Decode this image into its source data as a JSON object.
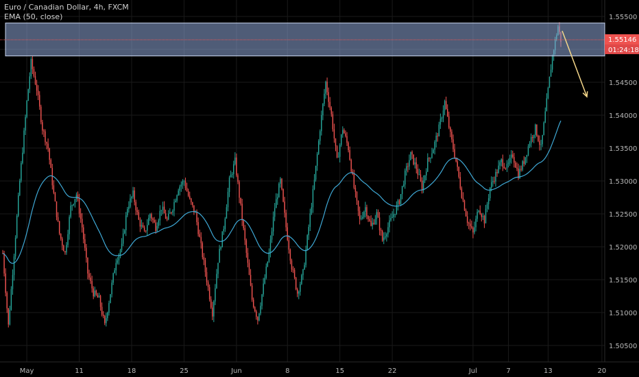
{
  "header": {
    "title": "Euro / Canadian Dollar, 4h, FXCM",
    "indicator": "EMA (50, close)"
  },
  "colors": {
    "background": "#000000",
    "up": "#26a69a",
    "down": "#ef5350",
    "ema": "#3fa9d6",
    "zone_fill": "#8fa8d8",
    "price_line": "#ef5350",
    "arrow": "#f5d78a",
    "grid": "#1a1a1a",
    "axis_text": "#b8b8b8"
  },
  "chart_data": {
    "type": "candlestick",
    "symbol": "Euro / Canadian Dollar",
    "interval": "4h",
    "source": "FXCM",
    "ylim": [
      1.5025,
      1.5575
    ],
    "y_ticks": [
      "1.55500",
      "1.55000",
      "1.54500",
      "1.54000",
      "1.53500",
      "1.53000",
      "1.52500",
      "1.52000",
      "1.51500",
      "1.51000",
      "1.50500"
    ],
    "x_ticks": [
      "May",
      "11",
      "18",
      "25",
      "Jun",
      "8",
      "15",
      "22",
      "Jul",
      "7",
      "13",
      "20"
    ],
    "price_keyframes": [
      [
        0,
        1.519
      ],
      [
        4,
        1.508
      ],
      [
        8,
        1.519
      ],
      [
        12,
        1.53
      ],
      [
        17,
        1.542
      ],
      [
        20,
        1.548
      ],
      [
        24,
        1.544
      ],
      [
        28,
        1.538
      ],
      [
        32,
        1.535
      ],
      [
        36,
        1.528
      ],
      [
        40,
        1.522
      ],
      [
        44,
        1.519
      ],
      [
        48,
        1.526
      ],
      [
        52,
        1.528
      ],
      [
        56,
        1.523
      ],
      [
        60,
        1.516
      ],
      [
        64,
        1.513
      ],
      [
        68,
        1.512
      ],
      [
        72,
        1.508
      ],
      [
        76,
        1.513
      ],
      [
        80,
        1.518
      ],
      [
        84,
        1.52
      ],
      [
        88,
        1.526
      ],
      [
        92,
        1.528
      ],
      [
        96,
        1.524
      ],
      [
        100,
        1.522
      ],
      [
        104,
        1.525
      ],
      [
        108,
        1.523
      ],
      [
        112,
        1.526
      ],
      [
        116,
        1.524
      ],
      [
        120,
        1.526
      ],
      [
        124,
        1.529
      ],
      [
        128,
        1.53
      ],
      [
        132,
        1.527
      ],
      [
        136,
        1.525
      ],
      [
        140,
        1.52
      ],
      [
        144,
        1.515
      ],
      [
        148,
        1.51
      ],
      [
        152,
        1.518
      ],
      [
        156,
        1.523
      ],
      [
        160,
        1.53
      ],
      [
        164,
        1.533
      ],
      [
        168,
        1.526
      ],
      [
        172,
        1.519
      ],
      [
        176,
        1.512
      ],
      [
        180,
        1.509
      ],
      [
        184,
        1.514
      ],
      [
        188,
        1.519
      ],
      [
        192,
        1.526
      ],
      [
        196,
        1.53
      ],
      [
        200,
        1.523
      ],
      [
        204,
        1.517
      ],
      [
        208,
        1.513
      ],
      [
        212,
        1.516
      ],
      [
        216,
        1.523
      ],
      [
        220,
        1.53
      ],
      [
        224,
        1.538
      ],
      [
        228,
        1.545
      ],
      [
        232,
        1.54
      ],
      [
        236,
        1.533
      ],
      [
        240,
        1.538
      ],
      [
        244,
        1.535
      ],
      [
        248,
        1.529
      ],
      [
        252,
        1.524
      ],
      [
        256,
        1.526
      ],
      [
        260,
        1.523
      ],
      [
        264,
        1.525
      ],
      [
        268,
        1.521
      ],
      [
        272,
        1.523
      ],
      [
        276,
        1.525
      ],
      [
        280,
        1.527
      ],
      [
        284,
        1.531
      ],
      [
        288,
        1.534
      ],
      [
        292,
        1.532
      ],
      [
        296,
        1.529
      ],
      [
        300,
        1.533
      ],
      [
        304,
        1.535
      ],
      [
        308,
        1.538
      ],
      [
        312,
        1.542
      ],
      [
        316,
        1.537
      ],
      [
        320,
        1.533
      ],
      [
        324,
        1.528
      ],
      [
        328,
        1.524
      ],
      [
        332,
        1.522
      ],
      [
        336,
        1.526
      ],
      [
        340,
        1.524
      ],
      [
        344,
        1.529
      ],
      [
        348,
        1.531
      ],
      [
        352,
        1.533
      ],
      [
        356,
        1.532
      ],
      [
        360,
        1.534
      ],
      [
        364,
        1.531
      ],
      [
        368,
        1.533
      ],
      [
        372,
        1.536
      ],
      [
        376,
        1.538
      ],
      [
        380,
        1.535
      ],
      [
        384,
        1.542
      ],
      [
        388,
        1.549
      ],
      [
        392,
        1.5535
      ],
      [
        394,
        1.5514
      ]
    ],
    "ema_period": 50,
    "resistance_zone": {
      "from": 1.549,
      "to": 1.554
    },
    "last_price": "1.55146",
    "last_price_value": 1.55146,
    "countdown": "01:24:18",
    "projection_arrow": {
      "from": 1.5528,
      "to": 1.5428
    }
  }
}
